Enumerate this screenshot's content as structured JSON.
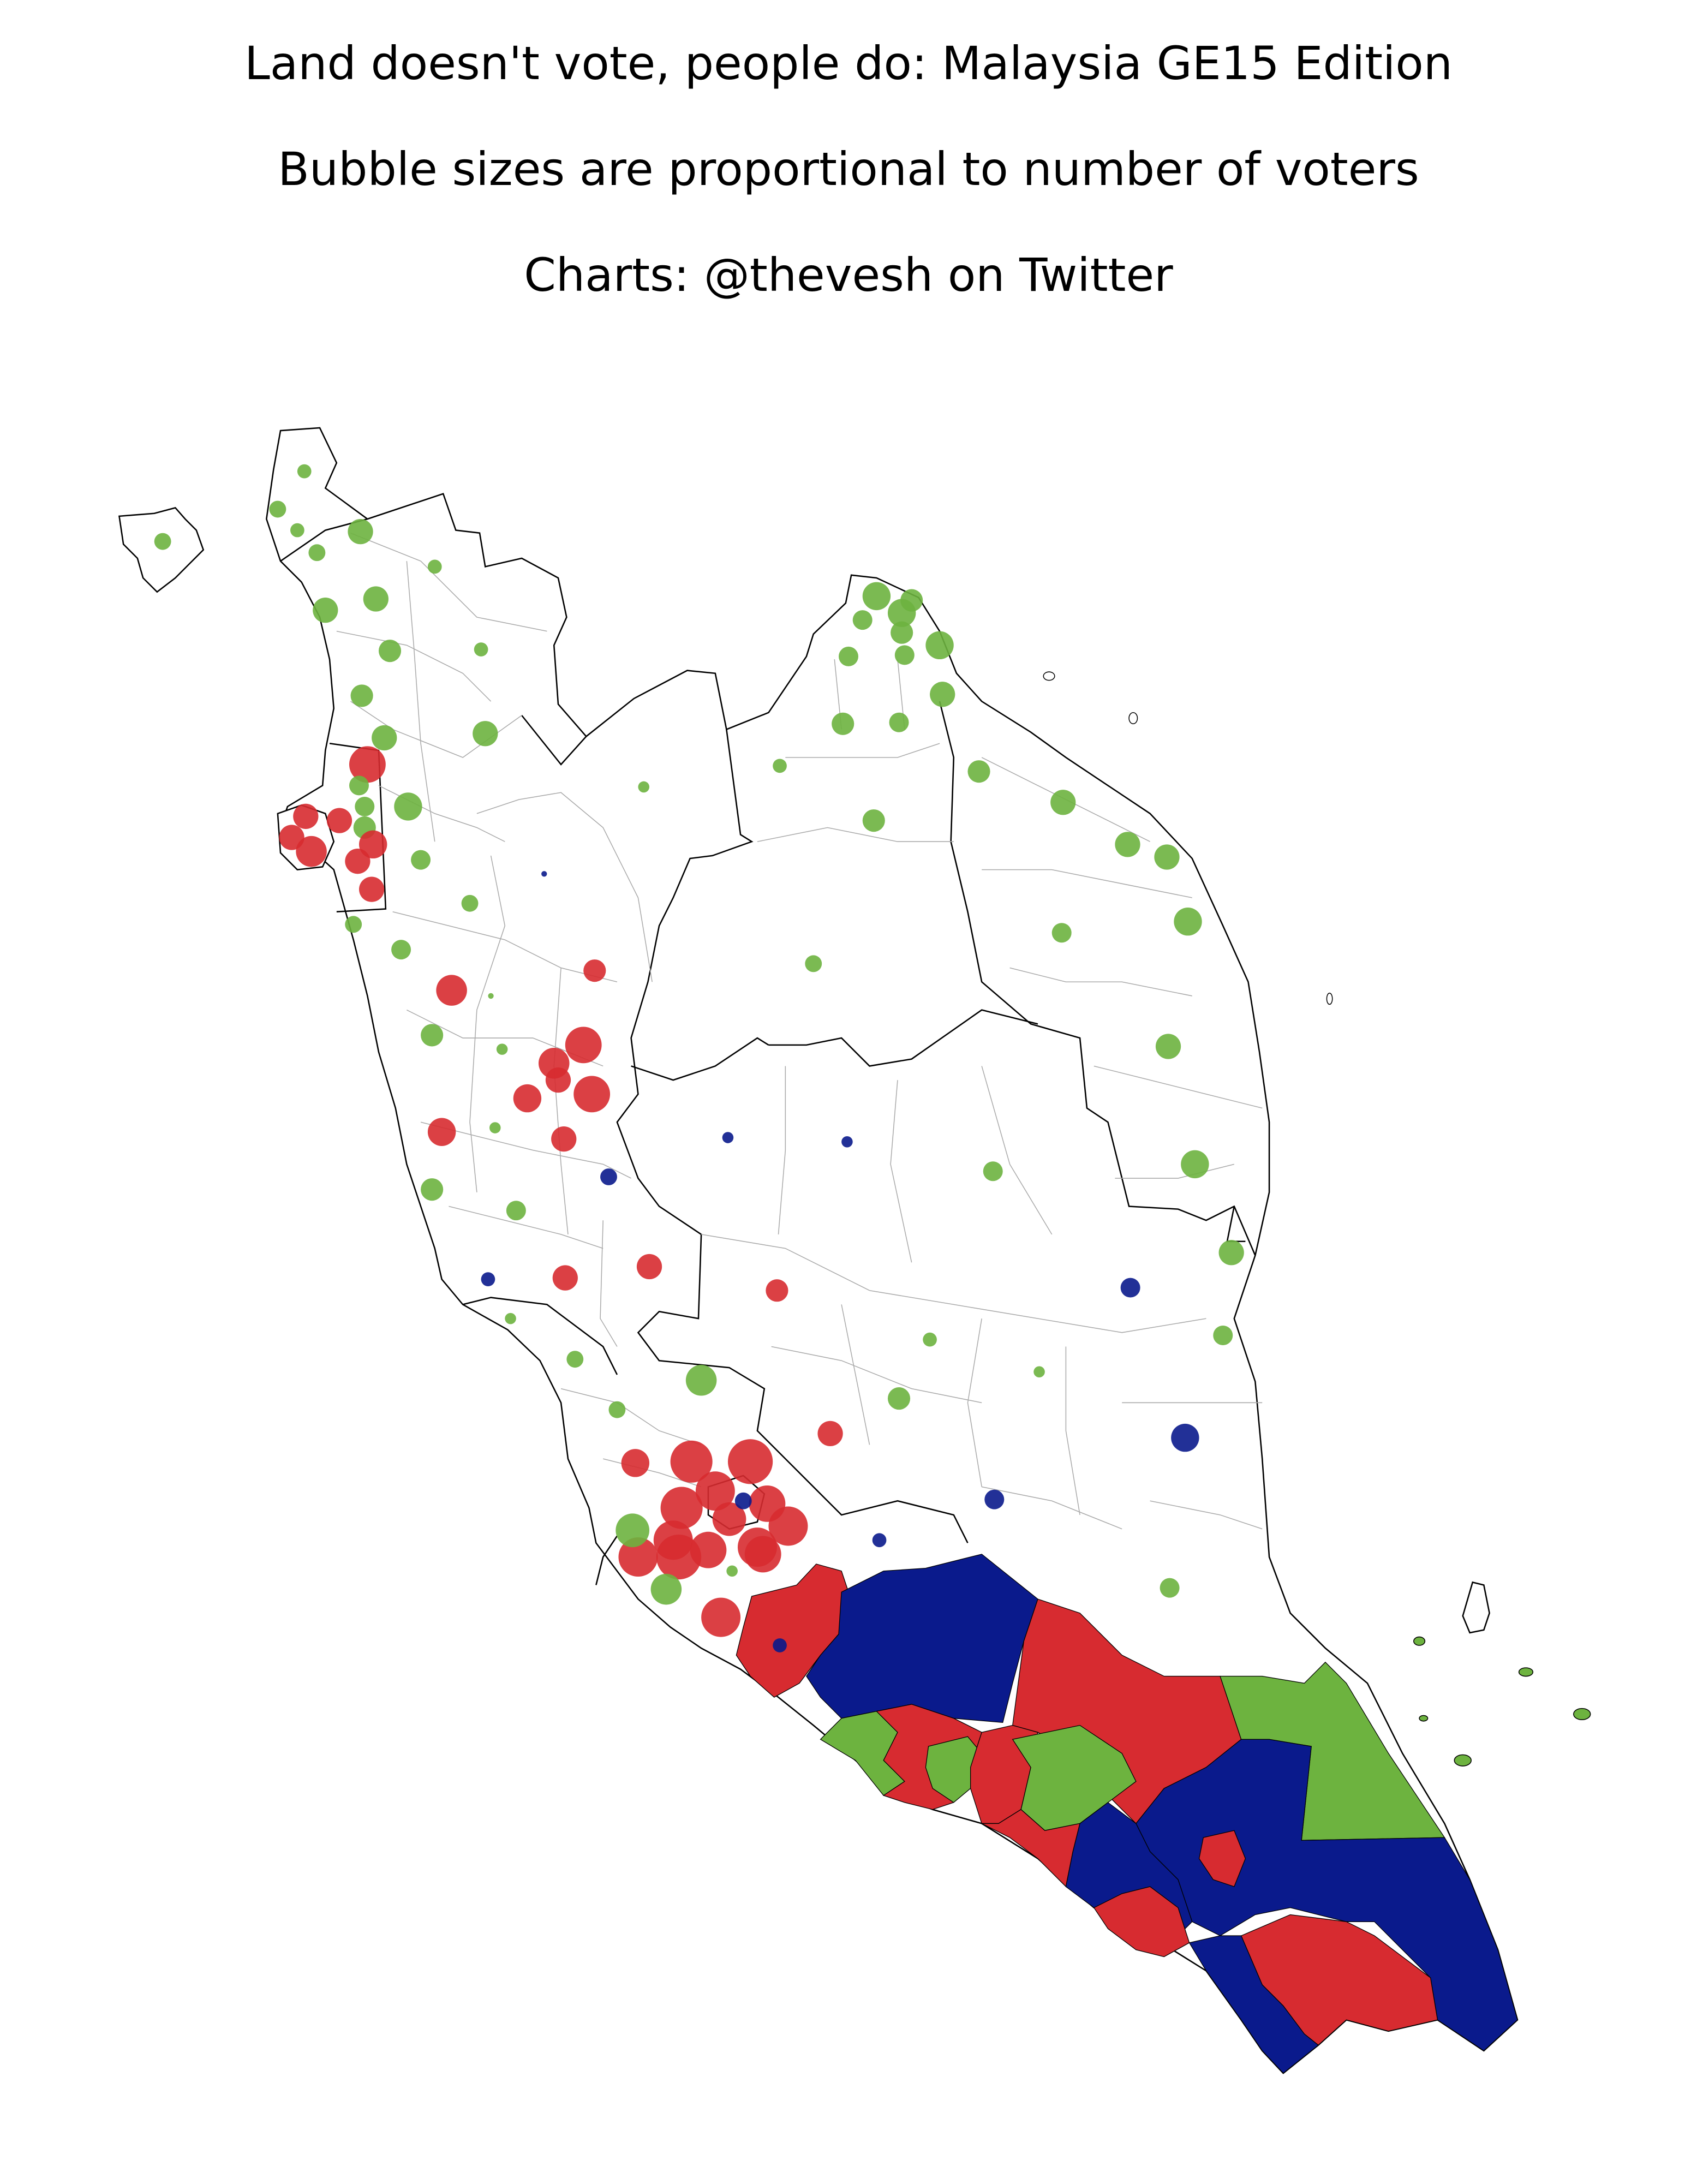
{
  "title": {
    "line1": "Land doesn't vote, people do: Malaysia GE15 Edition",
    "line2": "Bubble sizes are proportional to number of voters",
    "line3": "Charts: @thevesh on Twitter"
  },
  "colors": {
    "green": "#6db33f",
    "red": "#d72b30",
    "blue": "#0a1a8c",
    "outline": "#000000",
    "district_line": "#aaaaaa",
    "background": "#ffffff"
  }
}
